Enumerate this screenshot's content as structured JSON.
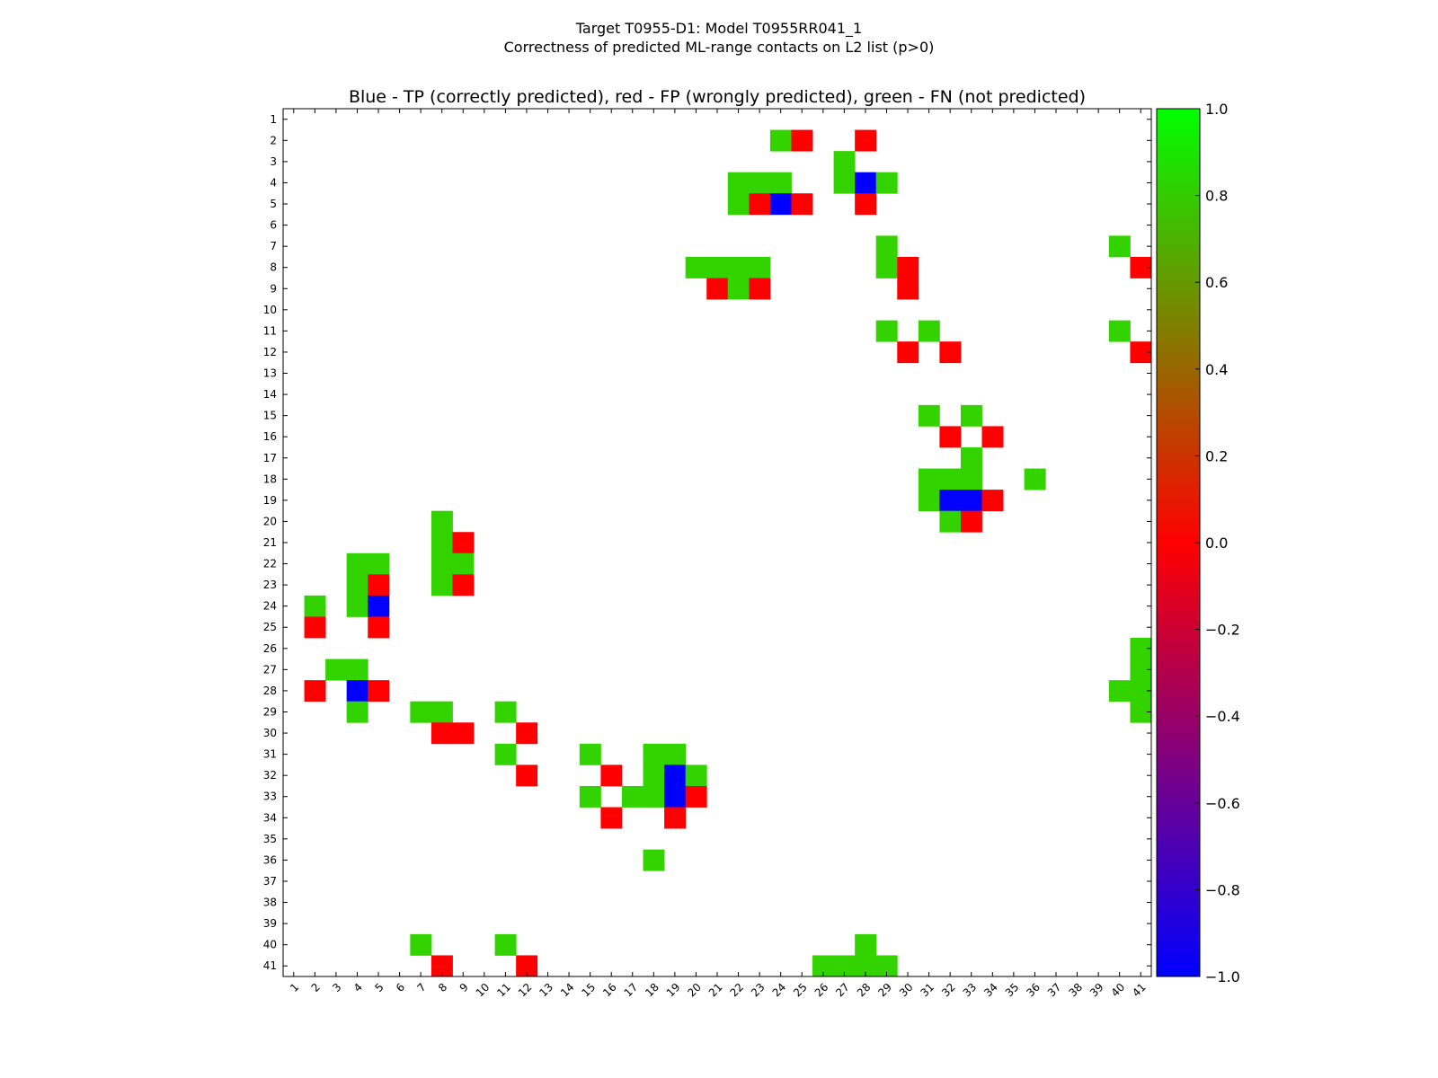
{
  "chart_data": {
    "type": "heatmap",
    "suptitle_line1": "Target T0955-D1: Model T0955RR041_1",
    "suptitle_line2": "Correctness of predicted ML-range contacts on L2 list (p>0)",
    "title": "Blue - TP (correctly predicted), red - FP (wrongly predicted), green - FN (not predicted)",
    "n": 41,
    "x_ticks": [
      "1",
      "2",
      "3",
      "4",
      "5",
      "6",
      "7",
      "8",
      "9",
      "10",
      "11",
      "12",
      "13",
      "14",
      "15",
      "16",
      "17",
      "18",
      "19",
      "20",
      "21",
      "22",
      "23",
      "24",
      "25",
      "26",
      "27",
      "28",
      "29",
      "30",
      "31",
      "32",
      "33",
      "34",
      "35",
      "36",
      "37",
      "38",
      "39",
      "40",
      "41"
    ],
    "y_ticks": [
      "1",
      "2",
      "3",
      "4",
      "5",
      "6",
      "7",
      "8",
      "9",
      "10",
      "11",
      "12",
      "13",
      "14",
      "15",
      "16",
      "17",
      "18",
      "19",
      "20",
      "21",
      "22",
      "23",
      "24",
      "25",
      "26",
      "27",
      "28",
      "29",
      "30",
      "31",
      "32",
      "33",
      "34",
      "35",
      "36",
      "37",
      "38",
      "39",
      "40",
      "41"
    ],
    "legend": {
      "tp": "Blue - TP (correctly predicted)",
      "fp": "red - FP (wrongly predicted)",
      "fn": "green - FN (not predicted)"
    },
    "value_meaning": {
      "tp": -1,
      "fp": 0,
      "fn": 0.8
    },
    "colors": {
      "tp": "#0000ff",
      "fp": "#ff0000",
      "fn": "#33d300"
    },
    "colorbar": {
      "range": [
        -1.0,
        1.0
      ],
      "ticks": [
        "1.0",
        "0.8",
        "0.6",
        "0.4",
        "0.2",
        "0.0",
        "−0.2",
        "−0.4",
        "−0.6",
        "−0.8",
        "−1.0"
      ],
      "tick_values": [
        1.0,
        0.8,
        0.6,
        0.4,
        0.2,
        0.0,
        -0.2,
        -0.4,
        -0.6,
        -0.8,
        -1.0
      ],
      "colormap_stops": [
        "#0000ff",
        "#ff0000",
        "#00ff00"
      ]
    },
    "cells": [
      {
        "row": 2,
        "col": 24,
        "type": "fn"
      },
      {
        "row": 2,
        "col": 25,
        "type": "fp"
      },
      {
        "row": 2,
        "col": 28,
        "type": "fp"
      },
      {
        "row": 3,
        "col": 27,
        "type": "fn"
      },
      {
        "row": 4,
        "col": 22,
        "type": "fn"
      },
      {
        "row": 4,
        "col": 23,
        "type": "fn"
      },
      {
        "row": 4,
        "col": 24,
        "type": "fn"
      },
      {
        "row": 4,
        "col": 27,
        "type": "fn"
      },
      {
        "row": 4,
        "col": 28,
        "type": "tp"
      },
      {
        "row": 4,
        "col": 29,
        "type": "fn"
      },
      {
        "row": 5,
        "col": 22,
        "type": "fn"
      },
      {
        "row": 5,
        "col": 23,
        "type": "fp"
      },
      {
        "row": 5,
        "col": 24,
        "type": "tp"
      },
      {
        "row": 5,
        "col": 25,
        "type": "fp"
      },
      {
        "row": 5,
        "col": 28,
        "type": "fp"
      },
      {
        "row": 7,
        "col": 29,
        "type": "fn"
      },
      {
        "row": 7,
        "col": 40,
        "type": "fn"
      },
      {
        "row": 8,
        "col": 20,
        "type": "fn"
      },
      {
        "row": 8,
        "col": 21,
        "type": "fn"
      },
      {
        "row": 8,
        "col": 22,
        "type": "fn"
      },
      {
        "row": 8,
        "col": 23,
        "type": "fn"
      },
      {
        "row": 8,
        "col": 29,
        "type": "fn"
      },
      {
        "row": 8,
        "col": 30,
        "type": "fp"
      },
      {
        "row": 8,
        "col": 41,
        "type": "fp"
      },
      {
        "row": 9,
        "col": 21,
        "type": "fp"
      },
      {
        "row": 9,
        "col": 22,
        "type": "fn"
      },
      {
        "row": 9,
        "col": 23,
        "type": "fp"
      },
      {
        "row": 9,
        "col": 30,
        "type": "fp"
      },
      {
        "row": 11,
        "col": 29,
        "type": "fn"
      },
      {
        "row": 11,
        "col": 31,
        "type": "fn"
      },
      {
        "row": 11,
        "col": 40,
        "type": "fn"
      },
      {
        "row": 12,
        "col": 30,
        "type": "fp"
      },
      {
        "row": 12,
        "col": 32,
        "type": "fp"
      },
      {
        "row": 12,
        "col": 41,
        "type": "fp"
      },
      {
        "row": 15,
        "col": 31,
        "type": "fn"
      },
      {
        "row": 15,
        "col": 33,
        "type": "fn"
      },
      {
        "row": 16,
        "col": 32,
        "type": "fp"
      },
      {
        "row": 16,
        "col": 34,
        "type": "fp"
      },
      {
        "row": 17,
        "col": 33,
        "type": "fn"
      },
      {
        "row": 18,
        "col": 31,
        "type": "fn"
      },
      {
        "row": 18,
        "col": 32,
        "type": "fn"
      },
      {
        "row": 18,
        "col": 33,
        "type": "fn"
      },
      {
        "row": 18,
        "col": 36,
        "type": "fn"
      },
      {
        "row": 19,
        "col": 31,
        "type": "fn"
      },
      {
        "row": 19,
        "col": 32,
        "type": "tp"
      },
      {
        "row": 19,
        "col": 33,
        "type": "tp"
      },
      {
        "row": 19,
        "col": 34,
        "type": "fp"
      },
      {
        "row": 20,
        "col": 8,
        "type": "fn"
      },
      {
        "row": 20,
        "col": 32,
        "type": "fn"
      },
      {
        "row": 20,
        "col": 33,
        "type": "fp"
      },
      {
        "row": 21,
        "col": 8,
        "type": "fn"
      },
      {
        "row": 21,
        "col": 9,
        "type": "fp"
      },
      {
        "row": 22,
        "col": 4,
        "type": "fn"
      },
      {
        "row": 22,
        "col": 5,
        "type": "fn"
      },
      {
        "row": 22,
        "col": 8,
        "type": "fn"
      },
      {
        "row": 22,
        "col": 9,
        "type": "fn"
      },
      {
        "row": 23,
        "col": 4,
        "type": "fn"
      },
      {
        "row": 23,
        "col": 5,
        "type": "fp"
      },
      {
        "row": 23,
        "col": 8,
        "type": "fn"
      },
      {
        "row": 23,
        "col": 9,
        "type": "fp"
      },
      {
        "row": 24,
        "col": 2,
        "type": "fn"
      },
      {
        "row": 24,
        "col": 4,
        "type": "fn"
      },
      {
        "row": 24,
        "col": 5,
        "type": "tp"
      },
      {
        "row": 25,
        "col": 2,
        "type": "fp"
      },
      {
        "row": 25,
        "col": 5,
        "type": "fp"
      },
      {
        "row": 26,
        "col": 41,
        "type": "fn"
      },
      {
        "row": 27,
        "col": 3,
        "type": "fn"
      },
      {
        "row": 27,
        "col": 4,
        "type": "fn"
      },
      {
        "row": 27,
        "col": 41,
        "type": "fn"
      },
      {
        "row": 28,
        "col": 2,
        "type": "fp"
      },
      {
        "row": 28,
        "col": 4,
        "type": "tp"
      },
      {
        "row": 28,
        "col": 5,
        "type": "fp"
      },
      {
        "row": 28,
        "col": 40,
        "type": "fn"
      },
      {
        "row": 28,
        "col": 41,
        "type": "fn"
      },
      {
        "row": 29,
        "col": 4,
        "type": "fn"
      },
      {
        "row": 29,
        "col": 7,
        "type": "fn"
      },
      {
        "row": 29,
        "col": 8,
        "type": "fn"
      },
      {
        "row": 29,
        "col": 11,
        "type": "fn"
      },
      {
        "row": 29,
        "col": 41,
        "type": "fn"
      },
      {
        "row": 30,
        "col": 8,
        "type": "fp"
      },
      {
        "row": 30,
        "col": 9,
        "type": "fp"
      },
      {
        "row": 30,
        "col": 12,
        "type": "fp"
      },
      {
        "row": 31,
        "col": 11,
        "type": "fn"
      },
      {
        "row": 31,
        "col": 15,
        "type": "fn"
      },
      {
        "row": 31,
        "col": 18,
        "type": "fn"
      },
      {
        "row": 31,
        "col": 19,
        "type": "fn"
      },
      {
        "row": 32,
        "col": 12,
        "type": "fp"
      },
      {
        "row": 32,
        "col": 16,
        "type": "fp"
      },
      {
        "row": 32,
        "col": 18,
        "type": "fn"
      },
      {
        "row": 32,
        "col": 19,
        "type": "tp"
      },
      {
        "row": 32,
        "col": 20,
        "type": "fn"
      },
      {
        "row": 33,
        "col": 15,
        "type": "fn"
      },
      {
        "row": 33,
        "col": 17,
        "type": "fn"
      },
      {
        "row": 33,
        "col": 18,
        "type": "fn"
      },
      {
        "row": 33,
        "col": 19,
        "type": "tp"
      },
      {
        "row": 33,
        "col": 20,
        "type": "fp"
      },
      {
        "row": 34,
        "col": 16,
        "type": "fp"
      },
      {
        "row": 34,
        "col": 19,
        "type": "fp"
      },
      {
        "row": 36,
        "col": 18,
        "type": "fn"
      },
      {
        "row": 40,
        "col": 7,
        "type": "fn"
      },
      {
        "row": 40,
        "col": 11,
        "type": "fn"
      },
      {
        "row": 40,
        "col": 28,
        "type": "fn"
      },
      {
        "row": 41,
        "col": 8,
        "type": "fp"
      },
      {
        "row": 41,
        "col": 12,
        "type": "fp"
      },
      {
        "row": 41,
        "col": 26,
        "type": "fn"
      },
      {
        "row": 41,
        "col": 27,
        "type": "fn"
      },
      {
        "row": 41,
        "col": 28,
        "type": "fn"
      },
      {
        "row": 41,
        "col": 29,
        "type": "fn"
      }
    ]
  }
}
